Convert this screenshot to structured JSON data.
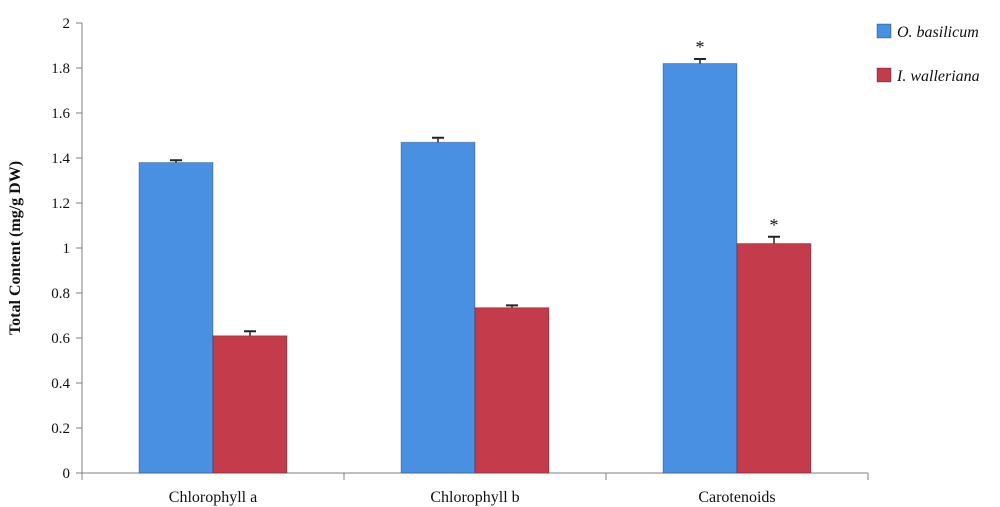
{
  "chart_data": {
    "type": "bar",
    "title": "",
    "xlabel": "",
    "ylabel": "Total Content (mg/g DW)",
    "ylim": [
      0,
      2
    ],
    "yticks": [
      0,
      0.2,
      0.4,
      0.6,
      0.8,
      1,
      1.2,
      1.4,
      1.6,
      1.8,
      2
    ],
    "categories": [
      "Chlorophyll a",
      "Chlorophyll b",
      "Carotenoids"
    ],
    "series": [
      {
        "name": "O. basilicum",
        "color": "#4a90e2",
        "values": [
          1.38,
          1.47,
          1.82
        ],
        "errors": [
          0.01,
          0.02,
          0.02
        ],
        "significance": [
          "",
          "",
          "*"
        ]
      },
      {
        "name": "I. walleriana",
        "color": "#c43b4b",
        "values": [
          0.61,
          0.735,
          1.02
        ],
        "errors": [
          0.02,
          0.01,
          0.03
        ],
        "significance": [
          "",
          "",
          "*"
        ]
      }
    ],
    "legend_position": "top-right",
    "grid": false
  }
}
